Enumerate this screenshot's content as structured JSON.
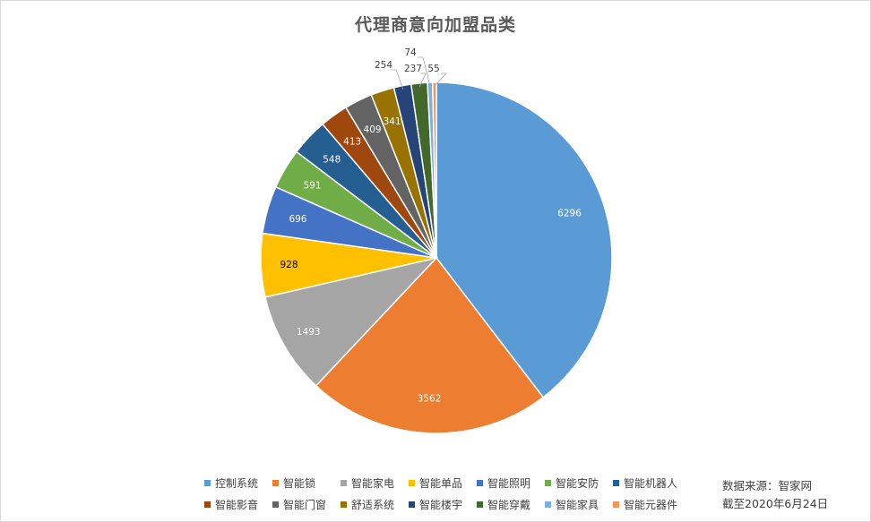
{
  "chart_data": {
    "type": "pie",
    "title": "代理商意向加盟品类",
    "categories": [
      "控制系统",
      "智能锁",
      "智能家电",
      "智能单品",
      "智能照明",
      "智能安防",
      "智能机器人",
      "智能影音",
      "智能门窗",
      "舒适系统",
      "智能楼宇",
      "智能穿戴",
      "智能家具",
      "智能元器件"
    ],
    "values": [
      6296,
      3562,
      1493,
      928,
      696,
      591,
      548,
      413,
      409,
      341,
      254,
      237,
      74,
      55
    ],
    "colors": [
      "#5b9bd5",
      "#ed7d31",
      "#a5a5a5",
      "#ffc000",
      "#4472c4",
      "#70ad47",
      "#255e91",
      "#9e480e",
      "#636363",
      "#997300",
      "#264478",
      "#43682b",
      "#7cafdd",
      "#f1975a"
    ],
    "label_colors": [
      "#ffffff",
      "#ffffff",
      "#ffffff",
      "#000000",
      "#ffffff",
      "#ffffff",
      "#ffffff",
      "#ffffff",
      "#ffffff",
      "#ffffff",
      "#404040",
      "#404040",
      "#404040",
      "#404040"
    ],
    "legend_placement": "bottom"
  },
  "source": {
    "line1": "数据来源：智家网",
    "line2": "截至2020年6月24日"
  }
}
